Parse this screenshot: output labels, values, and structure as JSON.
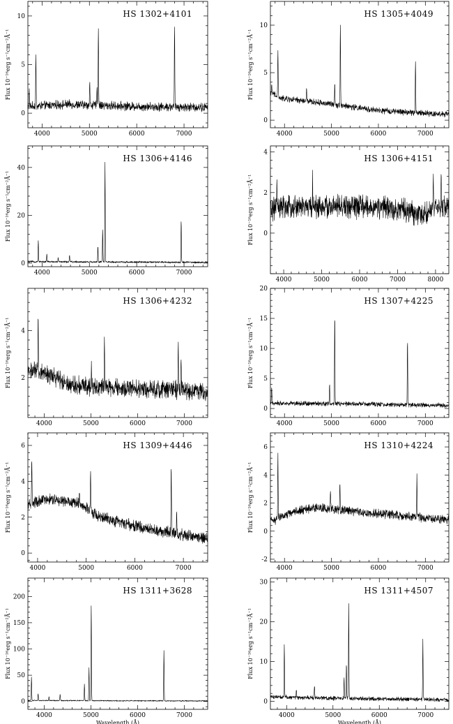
{
  "figure": {
    "xlabel": "Wavelength (Å)",
    "ylabel": "Flux 10⁻¹⁶erg s⁻¹cm⁻²Å⁻¹"
  },
  "chart_data": [
    {
      "type": "line",
      "title": "HS 1302+4101",
      "xlim": [
        3700,
        7500
      ],
      "ylim": [
        -1.5,
        11.5
      ],
      "xticks": [
        4000,
        5000,
        6000,
        7000
      ],
      "yticks": [
        0,
        5,
        10
      ],
      "xlabel": "",
      "ylabel": "Flux 10⁻¹⁶erg s⁻¹cm⁻²Å⁻¹",
      "series": [
        {
          "continuum": [
            [
              3700,
              0.7
            ],
            [
              4500,
              0.9
            ],
            [
              6000,
              0.7
            ],
            [
              7500,
              0.6
            ]
          ],
          "noise": 0.35,
          "lines": [
            [
              3727,
              2.5
            ],
            [
              3869,
              6.0
            ],
            [
              5007,
              3.3
            ],
            [
              5160,
              3.0
            ],
            [
              5190,
              9.0
            ],
            [
              6800,
              9.2
            ]
          ]
        }
      ]
    },
    {
      "type": "line",
      "title": "HS 1305+4049",
      "xlim": [
        3700,
        7500
      ],
      "ylim": [
        -0.8,
        12.5
      ],
      "xticks": [
        4000,
        5000,
        6000,
        7000
      ],
      "yticks": [
        0,
        5,
        10
      ],
      "xlabel": "",
      "ylabel": "Flux 10⁻¹⁶erg s⁻¹cm⁻²Å⁻¹",
      "series": [
        {
          "continuum": [
            [
              3700,
              3.0
            ],
            [
              3900,
              2.3
            ],
            [
              5000,
              1.7
            ],
            [
              6000,
              1.0
            ],
            [
              7500,
              0.6
            ]
          ],
          "noise": 0.25,
          "lines": [
            [
              3727,
              3.5
            ],
            [
              3860,
              7.5
            ],
            [
              4470,
              3.3
            ],
            [
              5070,
              4.0
            ],
            [
              5190,
              10.3
            ],
            [
              6790,
              6.2
            ]
          ]
        }
      ]
    },
    {
      "type": "line",
      "title": "HS 1306+4146",
      "xlim": [
        3700,
        7500
      ],
      "ylim": [
        -1.5,
        49
      ],
      "xticks": [
        4000,
        5000,
        6000,
        7000
      ],
      "yticks": [
        0,
        20,
        40
      ],
      "xlabel": "",
      "ylabel": "Flux 10⁻¹⁶erg s⁻¹cm⁻²Å⁻¹",
      "series": [
        {
          "continuum": [
            [
              3700,
              0.6
            ],
            [
              5000,
              0.5
            ],
            [
              7500,
              0.3
            ]
          ],
          "noise": 0.3,
          "lines": [
            [
              3920,
              9.5
            ],
            [
              4100,
              4.0
            ],
            [
              4340,
              2.5
            ],
            [
              4580,
              3.5
            ],
            [
              5180,
              7.0
            ],
            [
              5280,
              14.0
            ],
            [
              5330,
              42.0
            ],
            [
              6940,
              18.0
            ]
          ]
        }
      ]
    },
    {
      "type": "line",
      "title": "HS 1306+4151",
      "xlim": [
        3650,
        8350
      ],
      "ylim": [
        -2.0,
        4.3
      ],
      "xticks": [
        4000,
        5000,
        6000,
        7000,
        8000
      ],
      "yticks": [
        0,
        2,
        4
      ],
      "xlabel": "",
      "ylabel": "Flux 10⁻¹⁶erg s⁻¹cm⁻²Å⁻¹",
      "series": [
        {
          "continuum": [
            [
              3700,
              1.2
            ],
            [
              4500,
              1.3
            ],
            [
              6000,
              1.3
            ],
            [
              7000,
              1.2
            ],
            [
              7600,
              0.9
            ],
            [
              8300,
              1.4
            ]
          ],
          "noise": 0.45,
          "lines": [
            [
              3820,
              2.8
            ],
            [
              4760,
              2.7
            ],
            [
              7940,
              2.7
            ],
            [
              8150,
              3.0
            ]
          ]
        }
      ]
    },
    {
      "type": "line",
      "title": "HS 1306+4232",
      "xlim": [
        3650,
        7500
      ],
      "ylim": [
        0.3,
        5.8
      ],
      "xticks": [
        4000,
        5000,
        6000,
        7000
      ],
      "yticks": [
        2,
        4
      ],
      "xlabel": "",
      "ylabel": "Flux 10⁻¹⁶erg s⁻¹cm⁻²Å⁻¹",
      "series": [
        {
          "continuum": [
            [
              3650,
              2.3
            ],
            [
              4000,
              2.2
            ],
            [
              4600,
              1.7
            ],
            [
              5500,
              1.55
            ],
            [
              6500,
              1.5
            ],
            [
              7450,
              1.4
            ]
          ],
          "noise": 0.3,
          "lines": [
            [
              3870,
              4.5
            ],
            [
              5010,
              2.8
            ],
            [
              5290,
              3.5
            ],
            [
              6870,
              3.6
            ],
            [
              6930,
              2.6
            ]
          ]
        }
      ]
    },
    {
      "type": "line",
      "title": "HS 1307+4225",
      "xlim": [
        3700,
        7500
      ],
      "ylim": [
        -1.5,
        20
      ],
      "xticks": [
        4000,
        5000,
        6000,
        7000
      ],
      "yticks": [
        0,
        5,
        10,
        15,
        20
      ],
      "xlabel": "",
      "ylabel": "Flux 10⁻¹⁶erg s⁻¹cm⁻²Å⁻¹",
      "series": [
        {
          "continuum": [
            [
              3700,
              0.9
            ],
            [
              5000,
              0.8
            ],
            [
              7500,
              0.5
            ]
          ],
          "noise": 0.3,
          "lines": [
            [
              3727,
              3.5
            ],
            [
              4960,
              4.0
            ],
            [
              5070,
              16.0
            ],
            [
              6620,
              11.8
            ]
          ]
        }
      ]
    },
    {
      "type": "line",
      "title": "HS 1309+4446",
      "xlim": [
        3800,
        7500
      ],
      "ylim": [
        -0.5,
        6.7
      ],
      "xticks": [
        4000,
        5000,
        6000,
        7000
      ],
      "yticks": [
        0,
        2,
        4,
        6
      ],
      "xlabel": "",
      "ylabel": "Flux 10⁻¹⁶erg s⁻¹cm⁻²Å⁻¹",
      "series": [
        {
          "continuum": [
            [
              3800,
              2.7
            ],
            [
              4200,
              3.0
            ],
            [
              4800,
              2.8
            ],
            [
              5300,
              2.0
            ],
            [
              6000,
              1.5
            ],
            [
              7000,
              1.0
            ],
            [
              7450,
              0.8
            ]
          ],
          "noise": 0.25,
          "lines": [
            [
              3880,
              5.2
            ],
            [
              4860,
              3.6
            ],
            [
              5090,
              4.6
            ],
            [
              6750,
              4.9
            ],
            [
              6860,
              2.2
            ]
          ]
        }
      ]
    },
    {
      "type": "line",
      "title": "HS 1310+4224",
      "xlim": [
        3700,
        7500
      ],
      "ylim": [
        -2.2,
        7
      ],
      "xticks": [
        4000,
        5000,
        6000,
        7000
      ],
      "yticks": [
        -2,
        0,
        2,
        4,
        6
      ],
      "xlabel": "",
      "ylabel": "Flux 10⁻¹⁶erg s⁻¹cm⁻²Å⁻¹",
      "series": [
        {
          "continuum": [
            [
              3800,
              0.8
            ],
            [
              4200,
              1.4
            ],
            [
              4700,
              1.7
            ],
            [
              5500,
              1.4
            ],
            [
              6500,
              1.1
            ],
            [
              7450,
              0.8
            ]
          ],
          "noise": 0.25,
          "lines": [
            [
              3860,
              5.4
            ],
            [
              4980,
              2.7
            ],
            [
              5180,
              3.4
            ],
            [
              6820,
              3.9
            ]
          ]
        }
      ]
    },
    {
      "type": "line",
      "title": "HS 1311+3628",
      "xlim": [
        3650,
        7500
      ],
      "ylim": [
        -15,
        235
      ],
      "xticks": [
        4000,
        5000,
        6000,
        7000
      ],
      "yticks": [
        0,
        50,
        100,
        150,
        200
      ],
      "xlabel": "Wavelength (Å)",
      "ylabel": "Flux 10⁻¹⁶erg s⁻¹cm⁻²Å⁻¹",
      "series": [
        {
          "continuum": [
            [
              3650,
              2.0
            ],
            [
              5000,
              1.5
            ],
            [
              7500,
              1.0
            ]
          ],
          "noise": 0.8,
          "lines": [
            [
              3727,
              47
            ],
            [
              3869,
              15
            ],
            [
              4102,
              10
            ],
            [
              4340,
              14
            ],
            [
              4861,
              33
            ],
            [
              4959,
              65
            ],
            [
              5007,
              185
            ],
            [
              6563,
              98
            ]
          ]
        }
      ]
    },
    {
      "type": "line",
      "title": "HS 1311+4507",
      "xlim": [
        3650,
        7500
      ],
      "ylim": [
        -2,
        31
      ],
      "xticks": [
        4000,
        5000,
        6000,
        7000
      ],
      "yticks": [
        0,
        10,
        20,
        30
      ],
      "xlabel": "Wavelength (Å)",
      "ylabel": "Flux 10⁻¹⁶erg s⁻¹cm⁻²Å⁻¹",
      "series": [
        {
          "continuum": [
            [
              3650,
              1.2
            ],
            [
              5000,
              0.8
            ],
            [
              7500,
              0.4
            ]
          ],
          "noise": 0.4,
          "lines": [
            [
              3950,
              14.5
            ],
            [
              4210,
              3.0
            ],
            [
              4600,
              4.0
            ],
            [
              5240,
              6.0
            ],
            [
              5290,
              9.5
            ],
            [
              5340,
              24.5
            ],
            [
              6940,
              15.5
            ]
          ]
        }
      ]
    }
  ]
}
